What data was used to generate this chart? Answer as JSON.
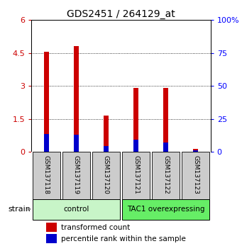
{
  "title": "GDS2451 / 264129_at",
  "samples": [
    "GSM137118",
    "GSM137119",
    "GSM137120",
    "GSM137121",
    "GSM137122",
    "GSM137123"
  ],
  "red_values": [
    4.55,
    4.8,
    1.65,
    2.9,
    2.9,
    0.12
  ],
  "blue_values": [
    0.82,
    0.78,
    0.25,
    0.55,
    0.42,
    0.08
  ],
  "ylim_left": [
    0,
    6
  ],
  "ylim_right": [
    0,
    100
  ],
  "yticks_left": [
    0,
    1.5,
    3,
    4.5,
    6
  ],
  "yticks_right": [
    0,
    25,
    50,
    75,
    100
  ],
  "groups": [
    {
      "label": "control",
      "indices": [
        0,
        1,
        2
      ],
      "color": "#c8f5c8"
    },
    {
      "label": "TAC1 overexpressing",
      "indices": [
        3,
        4,
        5
      ],
      "color": "#66ee66"
    }
  ],
  "group_label": "strain",
  "bar_width": 0.15,
  "red_color": "#cc0000",
  "blue_color": "#0000cc",
  "tick_bg_color": "#cccccc",
  "title_fontsize": 10,
  "axis_fontsize": 8,
  "legend_fontsize": 7.5,
  "sample_fontsize": 6.5
}
